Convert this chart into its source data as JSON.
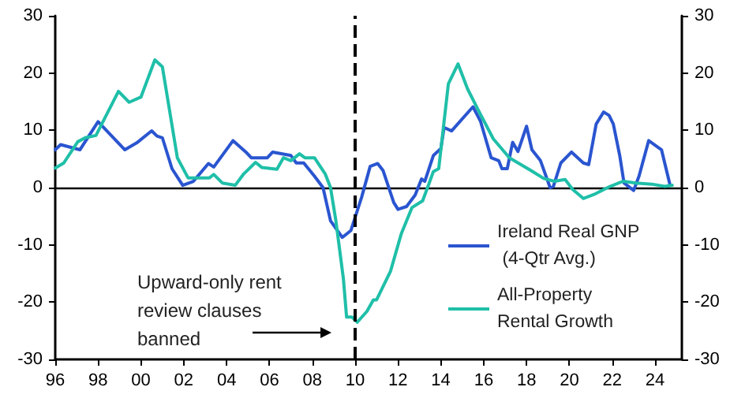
{
  "chart_data": {
    "type": "line",
    "xlim": [
      1996,
      2025.25
    ],
    "xticks": [
      {
        "value": 1996,
        "label": "96"
      },
      {
        "value": 1998,
        "label": "98"
      },
      {
        "value": 2000,
        "label": "00"
      },
      {
        "value": 2002,
        "label": "02"
      },
      {
        "value": 2004,
        "label": "04"
      },
      {
        "value": 2006,
        "label": "06"
      },
      {
        "value": 2008,
        "label": "08"
      },
      {
        "value": 2010,
        "label": "10"
      },
      {
        "value": 2012,
        "label": "12"
      },
      {
        "value": 2014,
        "label": "14"
      },
      {
        "value": 2016,
        "label": "16"
      },
      {
        "value": 2018,
        "label": "18"
      },
      {
        "value": 2020,
        "label": "20"
      },
      {
        "value": 2022,
        "label": "22"
      },
      {
        "value": 2024,
        "label": "24"
      }
    ],
    "ylim": [
      -30,
      30
    ],
    "yticks": [
      -30,
      -20,
      -10,
      0,
      10,
      20,
      30
    ],
    "y2lim": [
      -30,
      30
    ],
    "y2ticks": [
      -30,
      -20,
      -10,
      0,
      10,
      20,
      30
    ],
    "grid": false,
    "legend": "bottom right",
    "marker": "none",
    "line_style": "solid",
    "series": [
      {
        "name": "Ireland Real GNP (4-Qtr Avg.)",
        "color": "#2a55d0",
        "x": [
          1996.0,
          1996.25,
          1997.15,
          1998.0,
          1999.25,
          1999.8,
          2000.5,
          2000.75,
          2001.0,
          2001.45,
          2001.95,
          2002.45,
          2003.15,
          2003.4,
          2004.3,
          2004.9,
          2005.15,
          2005.9,
          2006.15,
          2007.0,
          2007.25,
          2007.6,
          2008.1,
          2008.5,
          2008.85,
          2009.4,
          2009.8,
          2010.3,
          2010.7,
          2011.05,
          2011.3,
          2011.8,
          2012.0,
          2012.4,
          2012.8,
          2013.1,
          2013.25,
          2013.65,
          2014.0,
          2014.15,
          2014.5,
          2015.5,
          2015.85,
          2016.35,
          2016.7,
          2016.85,
          2017.1,
          2017.35,
          2017.6,
          2018.0,
          2018.25,
          2018.65,
          2019.1,
          2019.25,
          2019.6,
          2020.1,
          2020.65,
          2020.9,
          2021.25,
          2021.6,
          2021.85,
          2022.05,
          2022.35,
          2022.55,
          2023.0,
          2023.25,
          2023.7,
          2024.3,
          2024.7
        ],
        "values": [
          6.6,
          7.5,
          6.6,
          11.5,
          6.6,
          7.8,
          9.9,
          9.0,
          8.7,
          3.3,
          0.4,
          1.1,
          4.2,
          3.6,
          8.2,
          6.2,
          5.2,
          5.2,
          6.2,
          5.6,
          4.3,
          4.3,
          2.0,
          0,
          -5.8,
          -8.7,
          -7.5,
          -1.7,
          3.7,
          4.2,
          3.0,
          -2.6,
          -3.8,
          -3.3,
          -1.3,
          1.5,
          1.1,
          5.6,
          6.8,
          10.5,
          9.9,
          14.1,
          11.6,
          5.2,
          4.7,
          3.3,
          3.3,
          7.9,
          6.3,
          10.7,
          6.6,
          4.7,
          0,
          0.2,
          4.3,
          6.2,
          4.3,
          4.0,
          11.1,
          13.2,
          12.6,
          11.1,
          5.6,
          0.8,
          -0.5,
          2.0,
          8.2,
          6.6,
          0.4
        ]
      },
      {
        "name": "All-Property Rental Growth",
        "color": "#1fbfa8",
        "x": [
          1996.0,
          1996.4,
          1997.05,
          1997.4,
          1997.9,
          1998.95,
          1999.45,
          2000.0,
          2000.65,
          2001.0,
          2001.7,
          2002.2,
          2003.2,
          2003.4,
          2003.8,
          2004.4,
          2004.8,
          2005.35,
          2005.65,
          2006.35,
          2006.65,
          2007.0,
          2007.4,
          2007.65,
          2008.1,
          2008.6,
          2008.85,
          2009.1,
          2009.45,
          2009.6,
          2009.85,
          2010.1,
          2010.55,
          2010.85,
          2011.0,
          2011.65,
          2012.15,
          2012.65,
          2013.15,
          2013.4,
          2013.65,
          2013.9,
          2014.35,
          2014.8,
          2015.25,
          2015.75,
          2016.45,
          2017.2,
          2018.2,
          2018.8,
          2019.3,
          2019.8,
          2020.15,
          2020.65,
          2021.15,
          2021.9,
          2022.5,
          2023.1,
          2023.85,
          2024.45,
          2024.8
        ],
        "values": [
          3.4,
          4.3,
          8.0,
          8.7,
          9.1,
          16.8,
          14.9,
          15.8,
          22.3,
          21.1,
          5.2,
          1.7,
          1.7,
          2.3,
          0.8,
          0.4,
          2.4,
          4.4,
          3.5,
          3.2,
          5.2,
          4.7,
          5.9,
          5.2,
          5.2,
          2.4,
          0,
          -5.8,
          -15.9,
          -22.6,
          -22.6,
          -23.5,
          -21.6,
          -19.6,
          -19.6,
          -14.6,
          -8.1,
          -3.5,
          -2.3,
          0.2,
          2.8,
          3.3,
          18.1,
          21.6,
          17.2,
          13.5,
          8.5,
          5.2,
          3.0,
          1.6,
          1.1,
          1.4,
          -0.3,
          -1.9,
          -1.2,
          0.2,
          1.1,
          0.8,
          0.6,
          0.2,
          0.4
        ]
      }
    ],
    "ref_lines": [
      {
        "axis": "x",
        "value": 2010,
        "label": null,
        "color": "#000000",
        "line_style": "dashed"
      }
    ],
    "annotations": [
      "Upward-only rent review clauses banned"
    ]
  }
}
